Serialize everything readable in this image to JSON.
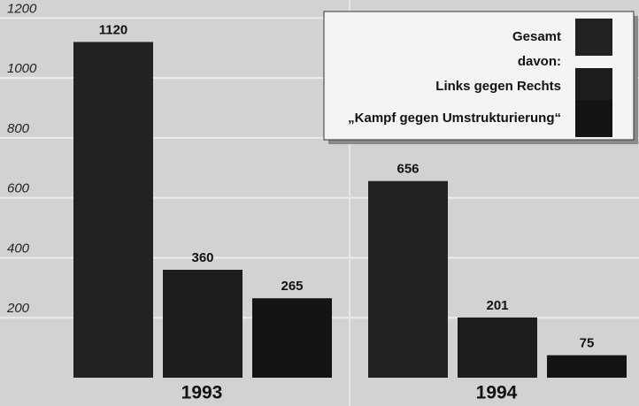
{
  "chart_data": {
    "type": "bar",
    "categories": [
      "1993",
      "1994"
    ],
    "series": [
      {
        "name": "Gesamt",
        "color": "#222222",
        "values": [
          1120,
          656
        ]
      },
      {
        "name": "Links gegen Rechts",
        "color": "#1c1c1c",
        "values": [
          360,
          201
        ]
      },
      {
        "name": "„Kampf gegen Umstrukturierung“",
        "color": "#141414",
        "values": [
          265,
          75
        ]
      }
    ],
    "legend_note": "davon:",
    "legend": "upper right",
    "ylim": [
      0,
      1260
    ],
    "yticks": [
      200,
      400,
      600,
      800,
      1000,
      1200
    ],
    "grid": true
  }
}
